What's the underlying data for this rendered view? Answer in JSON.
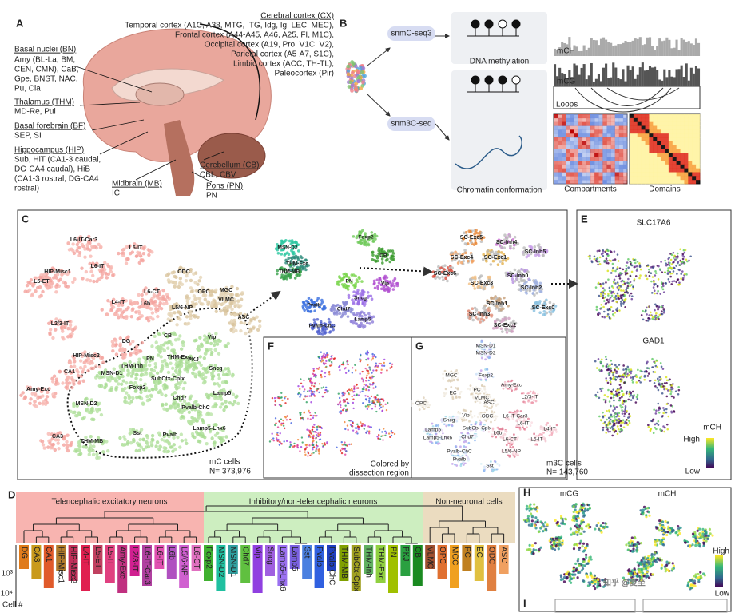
{
  "panel_a": {
    "letter": "A",
    "cortex": [
      "Cerebral cortex (CX)",
      "Temporal cortex (A1C, A38, MTG, ITG, Idg, Ig, LEC, MEC),",
      "Frontal cortex (A44-A45, A46, A25, FI, M1C),",
      "Occipital cortex (A19, Pro, V1C, V2),",
      "Parietal cortex (A5-A7, S1C),",
      "Limbic cortex (ACC, TH-TL),",
      "Paleocortex (Pir)"
    ],
    "left": [
      "Basal nuclei (BN)",
      "Amy (BL-La, BM,",
      "CEN, CMN), CaB,",
      "Gpe, BNST, NAC,",
      "Pu, Cla",
      "Thalamus (THM)",
      "MD-Re, Pul",
      "Basal forebrain (BF)",
      "SEP, SI",
      "Hippocampus (HIP)",
      "Sub, HiT (CA1-3 caudal,",
      "DG-CA4 caudal), HiB",
      "(CA1-3 rostral, DG-CA4",
      "rostral)"
    ],
    "other": [
      "Cerebellum (CB)",
      "CBL, CBV",
      "Midbrain (MB)",
      "IC",
      "Pons (PN)",
      "PN"
    ]
  },
  "panel_b": {
    "letter": "B",
    "labels": [
      "snmC-seq3",
      "snm3C-seq",
      "DNA methylation",
      "Chromatin conformation",
      "mCH",
      "mCG",
      "Loops",
      "Compartments",
      "Domains"
    ]
  },
  "panel_c": {
    "letter": "C",
    "clusters": [
      "L6-IT-Car3",
      "L5-IT",
      "L6-IT",
      "HIP-Misc1",
      "L5-ET",
      "L6-CT",
      "L4-IT",
      "L6b",
      "L2/3-IT",
      "ODC",
      "OPC",
      "MGC",
      "VLMC",
      "L5/6-NP",
      "ASC",
      "DG",
      "HIP-Misc2",
      "CA1",
      "Amy-Exc",
      "CA3",
      "MSN-D1",
      "MSN-D2",
      "THM-MB",
      "THM-Inh",
      "Foxp2",
      "PN",
      "CB",
      "Vip",
      "THM-Exc",
      "PKJ",
      "SubCtx-Cplx",
      "Sncg",
      "Chd7",
      "Lamp5",
      "Pvalb-ChC",
      "Sst",
      "Pvalb",
      "Lamp5-Lhx6"
    ],
    "inset": [
      "MSN-D2",
      "Foxp2",
      "CB",
      "THM-Exc",
      "THM-MB",
      "PN",
      "Pvalb",
      "Sncg",
      "Chd7",
      "Lamp5",
      "Pvalb-ChC",
      "Vip"
    ],
    "subclusters": [
      "SC-Exc5",
      "SC-Inh4",
      "SC-Exc4",
      "SC-Exc1",
      "SC-Inh5",
      "SC-Exc6",
      "SC-Inh0",
      "SC-Exc3",
      "SC-Inh2",
      "SC-Inh1",
      "SC-Exc0",
      "SC-Inh3",
      "SC-Exc2"
    ],
    "cells": "mC cells",
    "count": "N= 373,976"
  },
  "panel_e": {
    "letter": "E",
    "genes": [
      "SLC17A6",
      "GAD1"
    ],
    "legend_title": "mCH",
    "high": "High",
    "low": "Low"
  },
  "panel_f": {
    "letter": "F",
    "note": [
      "Colored by",
      "dissection region"
    ]
  },
  "panel_g": {
    "letter": "G",
    "clusters": [
      "MSN-D1",
      "MSN-D2",
      "Foxp2",
      "MGC",
      "EC",
      "PC",
      "VLMC",
      "Amy-Exc",
      "L2/3-IT",
      "OPC",
      "Vip",
      "ASC",
      "ODC",
      "L6-IT-Car3",
      "L6-IT",
      "L4-IT",
      "Sncg",
      "SubCtx-Cplx",
      "Lamp5",
      "Lamp5-Lhx6",
      "Chd7",
      "L6b",
      "L6-CT",
      "L5-IT",
      "L5/6-NP",
      "Pvalb-ChC",
      "Pvalb",
      "Sst"
    ],
    "cells": "m3C cells",
    "count": "N= 143,760"
  },
  "panel_d": {
    "letter": "D",
    "groups": [
      "Telencephalic excitatory neurons",
      "Inhibitory/non-telencephalic neurons",
      "Non-neuronal cells"
    ],
    "leaves": [
      "DG",
      "CA3",
      "CA1",
      "HIP-Misc1",
      "HIP-Misc2",
      "L4-IT",
      "L5-ET",
      "L5-IT",
      "Amy-Exc",
      "L2/3-IT",
      "L6-IT-Car3",
      "L6-IT",
      "L6b",
      "L5/6-NP",
      "L6-CT",
      "Foxp2",
      "MSN-D2",
      "MSN-D1",
      "Chd7",
      "Vip",
      "Sncg",
      "Lamp5-Lhx6",
      "Lamp5",
      "Sst",
      "Pvalb",
      "Pvalb-ChC",
      "THM-MB",
      "SubCtx-Cplx",
      "THM-Inh",
      "THM-Exc",
      "PN",
      "PKJ",
      "CB",
      "VLMC",
      "OPC",
      "MGC",
      "PC",
      "EC",
      "ODC",
      "ASC"
    ],
    "axis_ticks": [
      "10³",
      "10⁴"
    ],
    "axis_label": "Cell #"
  },
  "panel_h": {
    "letter": "H",
    "maps": [
      "mCG",
      "mCH"
    ],
    "high": "High",
    "low": "Low"
  },
  "panel_i": {
    "letter": "I"
  },
  "watermark": "知乎 @夏至"
}
